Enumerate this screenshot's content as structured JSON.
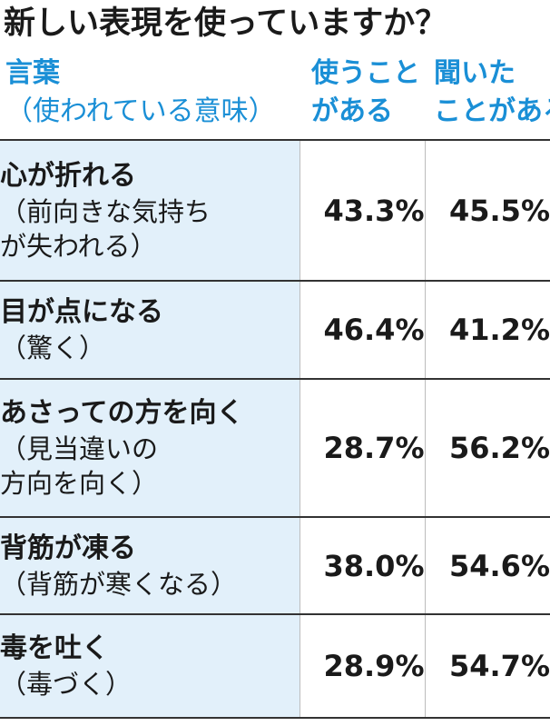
{
  "title": "新しい表現を使っていますか？",
  "colors": {
    "header_text": "#1a8fd6",
    "label_background": "#e2f0fa",
    "value_background": "#ffffff",
    "text": "#1a1a1a",
    "rule": "#333333"
  },
  "chart_data": {
    "type": "table",
    "columns": [
      {
        "main": "言葉",
        "sub": "（使われている意味）"
      },
      {
        "main": "使うこと",
        "sub": "がある"
      },
      {
        "main": "聞いた",
        "sub": "ことがある"
      }
    ],
    "rows": [
      {
        "term": "心が折れる",
        "meaning": "（前向きな気持ち\nが失われる）",
        "use": "43.3%",
        "heard": "45.5%"
      },
      {
        "term": "目が点になる",
        "meaning": "（驚く）",
        "use": "46.4%",
        "heard": "41.2%"
      },
      {
        "term": "あさっての方を向く",
        "meaning": "（見当違いの\n方向を向く）",
        "use": "28.7%",
        "heard": "56.2%"
      },
      {
        "term": "背筋が凍る",
        "meaning": "（背筋が寒くなる）",
        "use": "38.0%",
        "heard": "54.6%"
      },
      {
        "term": "毒を吐く",
        "meaning": "（毒づく）",
        "use": "28.9%",
        "heard": "54.7%"
      }
    ]
  }
}
